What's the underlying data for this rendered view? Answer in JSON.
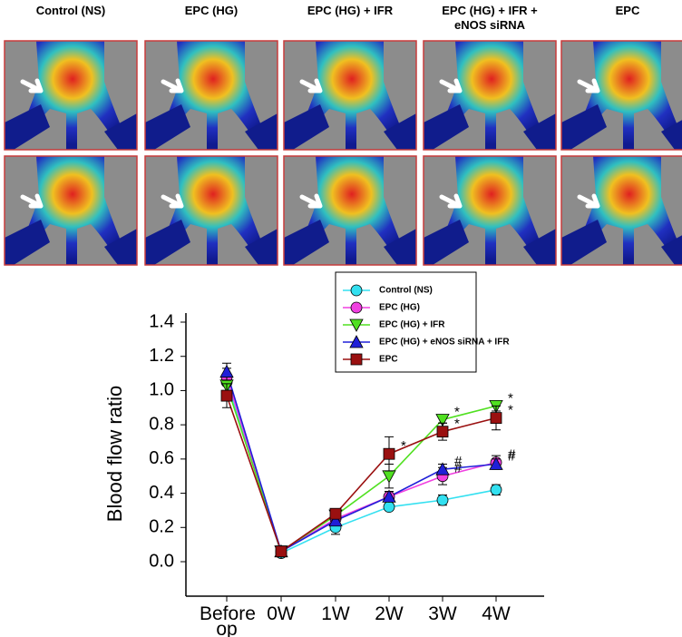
{
  "panel": {
    "columns": [
      "Control (NS)",
      "EPC (HG)",
      "EPC (HG) + IFR",
      "EPC (HG) + IFR + eNOS siRNA",
      "EPC"
    ]
  },
  "chart_data": {
    "type": "line",
    "ylabel": "Blood flow ratio",
    "categories": [
      "Before op",
      "0W",
      "1W",
      "2W",
      "3W",
      "4W"
    ],
    "ylim": [
      -0.2,
      1.45
    ],
    "yticks": [
      {
        "value": 0,
        "label": "0.0"
      },
      0.2,
      0.4,
      0.6,
      0.8,
      {
        "value": 1,
        "label": "1.0"
      },
      1.2,
      1.4
    ],
    "grid": false,
    "legend": "top-right",
    "series": [
      {
        "name": "Control (NS)",
        "color": "#33e0f0",
        "marker": "circle",
        "values": [
          1.05,
          0.05,
          0.2,
          0.32,
          0.36,
          0.42
        ],
        "errors": [
          0.05,
          0.01,
          0.04,
          0.02,
          0.03,
          0.03
        ]
      },
      {
        "name": "EPC (HG)",
        "color": "#f040e0",
        "marker": "circle",
        "values": [
          1.08,
          0.06,
          0.25,
          0.38,
          0.5,
          0.58
        ],
        "errors": [
          0.05,
          0.01,
          0.03,
          0.03,
          0.05,
          0.04
        ]
      },
      {
        "name": "EPC (HG) + IFR",
        "color": "#50e020",
        "marker": "triangle-down",
        "values": [
          1.03,
          0.06,
          0.27,
          0.5,
          0.83,
          0.91
        ],
        "errors": [
          0.05,
          0.01,
          0.03,
          0.07,
          0.02,
          0.03
        ]
      },
      {
        "name": "EPC (HG) + eNOS siRNA + IFR",
        "color": "#2020d8",
        "marker": "triangle-up",
        "values": [
          1.11,
          0.06,
          0.24,
          0.38,
          0.54,
          0.57
        ],
        "errors": [
          0.05,
          0.01,
          0.03,
          0.03,
          0.03,
          0.03
        ]
      },
      {
        "name": "EPC",
        "color": "#9a1010",
        "marker": "square",
        "values": [
          0.97,
          0.06,
          0.28,
          0.63,
          0.76,
          0.84
        ],
        "errors": [
          0.07,
          0.01,
          0.02,
          0.1,
          0.05,
          0.07
        ]
      }
    ],
    "annotations": [
      {
        "text": "*",
        "series": "EPC",
        "category": "2W"
      },
      {
        "text": "*",
        "series": "EPC (HG) + IFR",
        "category": "3W"
      },
      {
        "text": "*",
        "series": "EPC",
        "category": "3W"
      },
      {
        "text": "#",
        "series": "EPC (HG) + eNOS siRNA + IFR",
        "category": "3W"
      },
      {
        "text": "#",
        "series": "EPC (HG)",
        "category": "3W"
      },
      {
        "text": "*",
        "series": "EPC (HG) + IFR",
        "category": "4W"
      },
      {
        "text": "*",
        "series": "EPC",
        "category": "4W"
      },
      {
        "text": "#",
        "series": "EPC (HG)",
        "category": "4W"
      },
      {
        "text": "#",
        "series": "EPC (HG) + eNOS siRNA + IFR",
        "category": "4W"
      }
    ]
  }
}
